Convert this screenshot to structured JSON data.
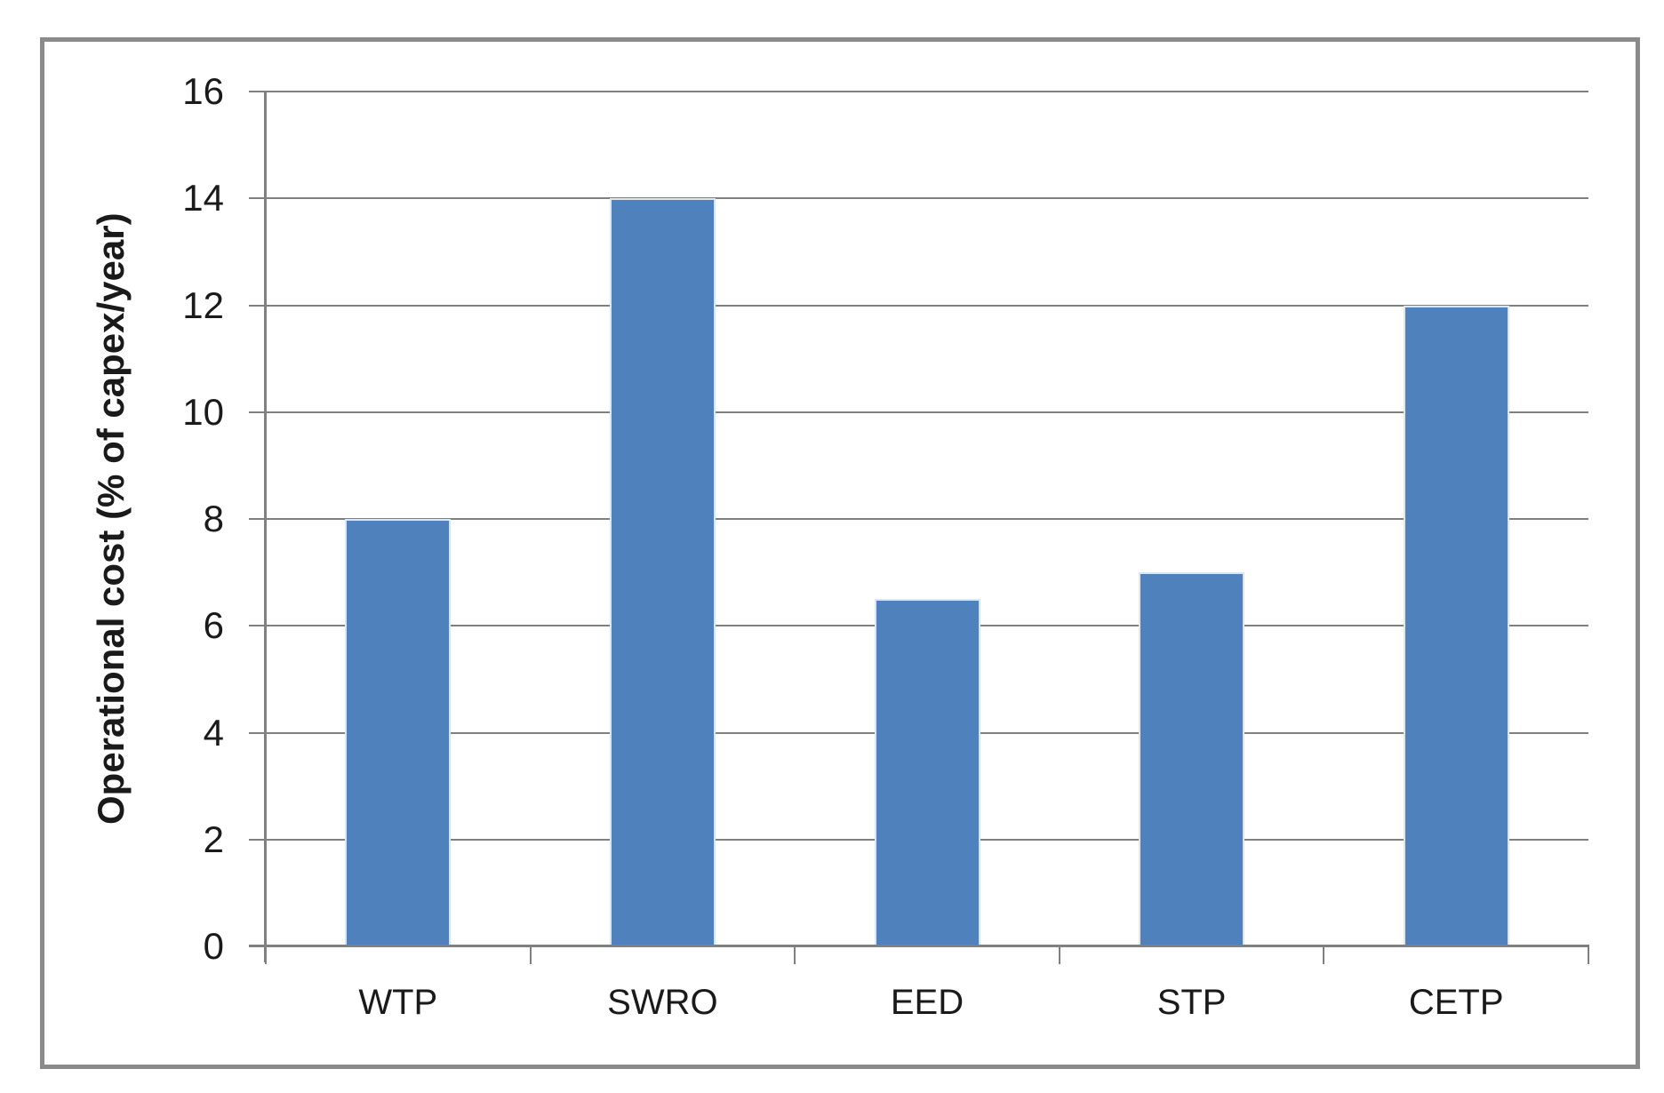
{
  "chart_data": {
    "type": "bar",
    "title": "",
    "categories": [
      "WTP",
      "SWRO",
      "EED",
      "STP",
      "CETP"
    ],
    "values": [
      8,
      14,
      6.5,
      7,
      12
    ],
    "xlabel": "",
    "ylabel": "Operational cost (% of capex/year)",
    "ylim": [
      0,
      16
    ],
    "ytick_step": 2,
    "ytick_labels": [
      "0",
      "2",
      "4",
      "6",
      "8",
      "10",
      "12",
      "14",
      "16"
    ],
    "grid": true,
    "legend": "none",
    "colors": {
      "bar_fill": "#4f81bd",
      "bar_border": "#dce6f2",
      "gridline": "#808080",
      "axis": "#808080",
      "frame_border": "#8a8a8a",
      "text": "#1a1a1a",
      "background": "#ffffff"
    }
  }
}
